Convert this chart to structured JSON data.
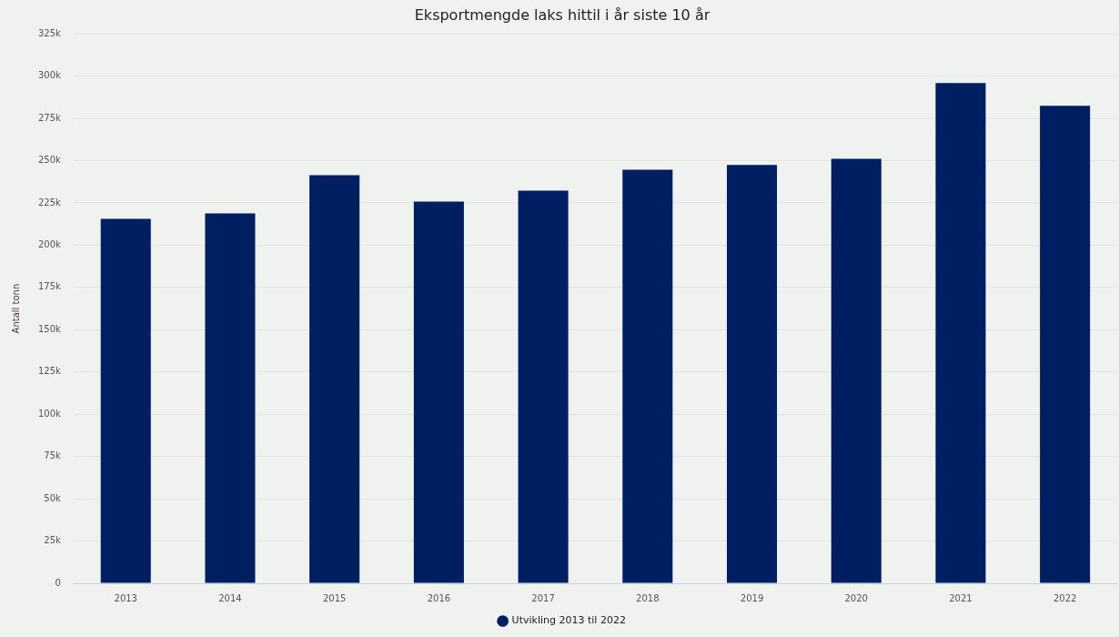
{
  "chart_data": {
    "type": "bar",
    "title": "Eksportmengde laks hittil i år siste 10 år",
    "ylabel": "Antall tonn",
    "categories": [
      "2013",
      "2014",
      "2015",
      "2016",
      "2017",
      "2018",
      "2019",
      "2020",
      "2021",
      "2022"
    ],
    "series": [
      {
        "name": "Utvikling 2013 til 2022",
        "color": "#001e62",
        "values": [
          215600,
          218800,
          241400,
          225800,
          232300,
          244700,
          247400,
          251100,
          295900,
          282400
        ]
      }
    ],
    "ylim": [
      0,
      325000
    ],
    "yticks": [
      0,
      {
        "value": 25000,
        "label": "25k"
      },
      {
        "value": 50000,
        "label": "50k"
      },
      {
        "value": 75000,
        "label": "75k"
      },
      {
        "value": 100000,
        "label": "100k"
      },
      {
        "value": 125000,
        "label": "125k"
      },
      {
        "value": 150000,
        "label": "150k"
      },
      {
        "value": 175000,
        "label": "175k"
      },
      {
        "value": 200000,
        "label": "200k"
      },
      {
        "value": 225000,
        "label": "225k"
      },
      {
        "value": 250000,
        "label": "250k"
      },
      {
        "value": 275000,
        "label": "275k"
      },
      {
        "value": 300000,
        "label": "300k"
      },
      {
        "value": 325000,
        "label": "325k"
      }
    ],
    "grid": "y",
    "legend": "bottom"
  }
}
